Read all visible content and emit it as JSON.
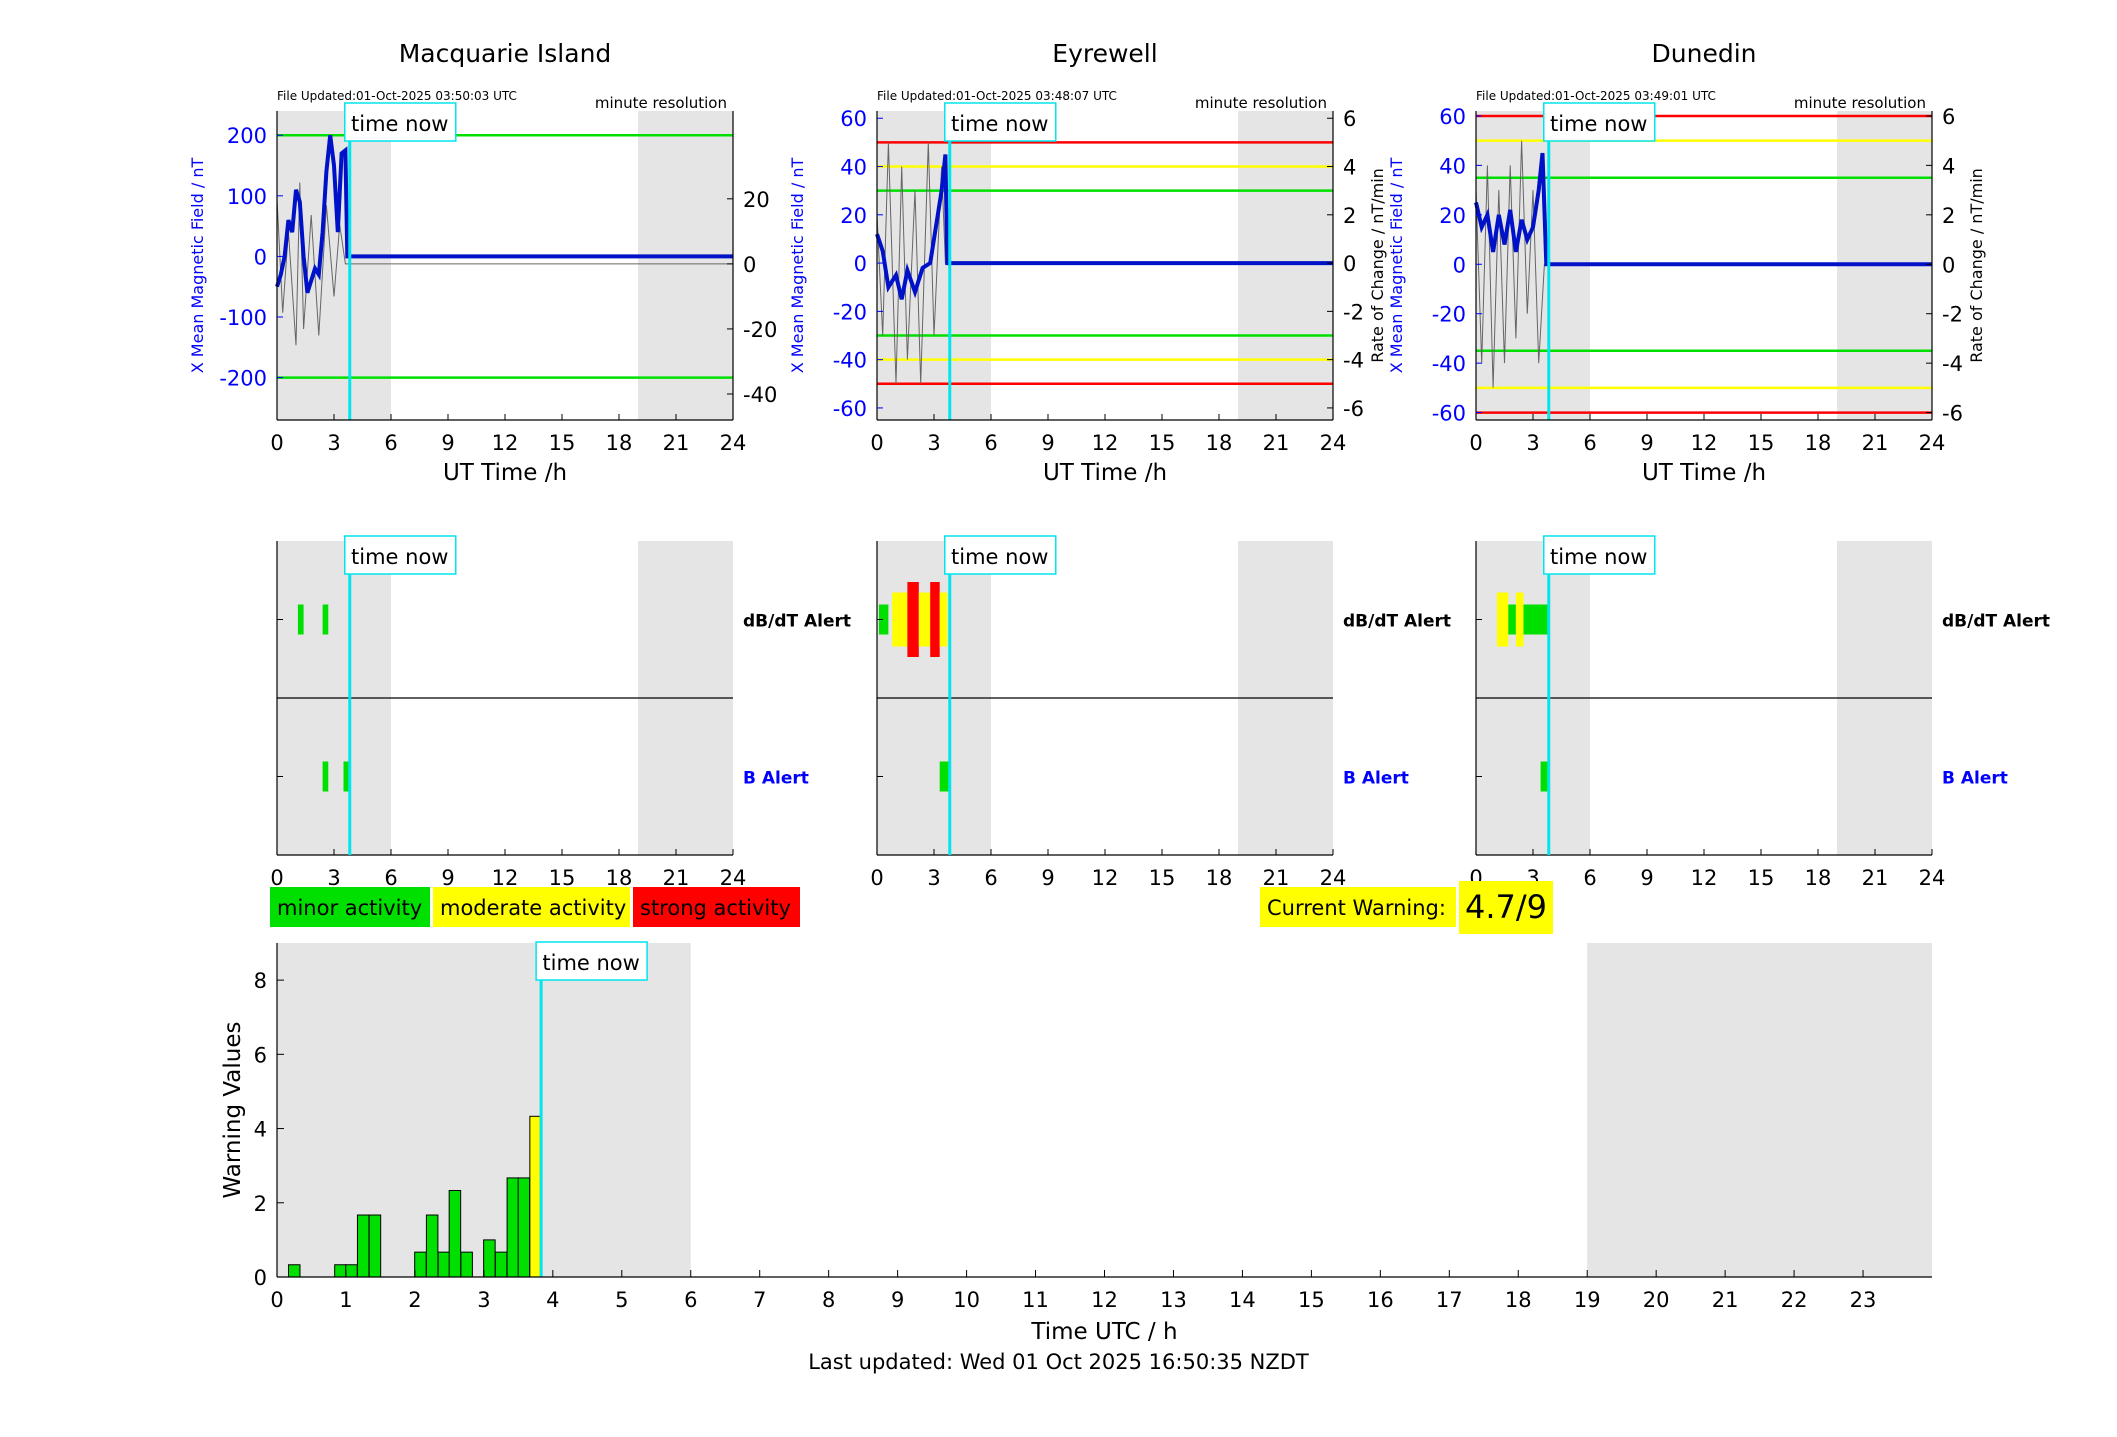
{
  "stations": [
    {
      "name": "Macquarie Island",
      "file_updated": "File Updated:01-Oct-2025 03:50:03 UTC",
      "resolution": "minute resolution",
      "left_ylabel": "X Mean Magnetic Field / nT",
      "right_ylabel": "",
      "left_ticks": [
        200,
        100,
        0,
        -100,
        -200
      ],
      "left_ylim": [
        -270,
        240
      ],
      "right_ticks": [
        20,
        0,
        -20,
        -40
      ],
      "right_ylim": [
        -48,
        47
      ],
      "thresholds": [
        {
          "value": 200,
          "color": "#00e000"
        },
        {
          "value": -200,
          "color": "#00e000"
        }
      ],
      "field_trace": [
        [
          0,
          -50
        ],
        [
          0.2,
          -30
        ],
        [
          0.4,
          0
        ],
        [
          0.6,
          60
        ],
        [
          0.8,
          40
        ],
        [
          1,
          110
        ],
        [
          1.2,
          90
        ],
        [
          1.4,
          0
        ],
        [
          1.6,
          -60
        ],
        [
          1.8,
          -40
        ],
        [
          2,
          -20
        ],
        [
          2.2,
          -30
        ],
        [
          2.4,
          40
        ],
        [
          2.6,
          140
        ],
        [
          2.8,
          200
        ],
        [
          3,
          150
        ],
        [
          3.2,
          40
        ],
        [
          3.4,
          170
        ],
        [
          3.6,
          175
        ],
        [
          3.7,
          0
        ],
        [
          24,
          0
        ]
      ],
      "rate_trace": [
        [
          0,
          20
        ],
        [
          0.3,
          -15
        ],
        [
          0.6,
          10
        ],
        [
          1,
          -25
        ],
        [
          1.2,
          25
        ],
        [
          1.4,
          -20
        ],
        [
          1.8,
          15
        ],
        [
          2.2,
          -22
        ],
        [
          2.6,
          18
        ],
        [
          3,
          -10
        ],
        [
          3.3,
          12
        ],
        [
          3.6,
          0
        ],
        [
          24,
          0
        ]
      ],
      "dbdt_alerts": [
        {
          "start": 1.1,
          "end": 1.4,
          "level": "minor"
        },
        {
          "start": 2.4,
          "end": 2.7,
          "level": "minor"
        }
      ],
      "b_alerts": [
        {
          "start": 2.4,
          "end": 2.7,
          "level": "minor"
        },
        {
          "start": 3.5,
          "end": 3.85,
          "level": "minor"
        }
      ]
    },
    {
      "name": "Eyrewell",
      "file_updated": "File Updated:01-Oct-2025 03:48:07 UTC",
      "resolution": "minute resolution",
      "left_ylabel": "X Mean Magnetic Field / nT",
      "right_ylabel": "Rate of Change / nT/min",
      "left_ticks": [
        60,
        40,
        20,
        0,
        -20,
        -40,
        -60
      ],
      "left_ylim": [
        -65,
        63
      ],
      "right_ticks": [
        6,
        4,
        2,
        0,
        -2,
        -4,
        -6
      ],
      "right_ylim": [
        -6.5,
        6.3
      ],
      "thresholds": [
        {
          "value": 50,
          "color": "#ff0000"
        },
        {
          "value": 40,
          "color": "#ffff00"
        },
        {
          "value": 30,
          "color": "#00e000"
        },
        {
          "value": -30,
          "color": "#00e000"
        },
        {
          "value": -40,
          "color": "#ffff00"
        },
        {
          "value": -50,
          "color": "#ff0000"
        }
      ],
      "field_trace": [
        [
          0,
          12
        ],
        [
          0.3,
          5
        ],
        [
          0.6,
          -10
        ],
        [
          1,
          -5
        ],
        [
          1.3,
          -15
        ],
        [
          1.6,
          -3
        ],
        [
          2,
          -12
        ],
        [
          2.4,
          -2
        ],
        [
          2.8,
          0
        ],
        [
          3.1,
          15
        ],
        [
          3.4,
          30
        ],
        [
          3.6,
          45
        ],
        [
          3.7,
          0
        ],
        [
          24,
          0
        ]
      ],
      "rate_trace": [
        [
          0,
          2
        ],
        [
          0.3,
          -3
        ],
        [
          0.6,
          5
        ],
        [
          1,
          -5
        ],
        [
          1.3,
          4
        ],
        [
          1.6,
          -4
        ],
        [
          2,
          3
        ],
        [
          2.3,
          -5
        ],
        [
          2.7,
          5
        ],
        [
          3,
          -3
        ],
        [
          3.4,
          4
        ],
        [
          3.6,
          0
        ],
        [
          24,
          0
        ]
      ],
      "dbdt_alerts": [
        {
          "start": 0.1,
          "end": 0.6,
          "level": "minor"
        },
        {
          "start": 0.8,
          "end": 1.6,
          "level": "moderate"
        },
        {
          "start": 1.6,
          "end": 2.2,
          "level": "strong"
        },
        {
          "start": 2.2,
          "end": 2.8,
          "level": "moderate"
        },
        {
          "start": 2.8,
          "end": 3.3,
          "level": "strong"
        },
        {
          "start": 3.3,
          "end": 3.7,
          "level": "moderate"
        }
      ],
      "b_alerts": [
        {
          "start": 3.3,
          "end": 3.85,
          "level": "minor"
        }
      ]
    },
    {
      "name": "Dunedin",
      "file_updated": "File Updated:01-Oct-2025 03:49:01 UTC",
      "resolution": "minute resolution",
      "left_ylabel": "X Mean Magnetic Field / nT",
      "right_ylabel": "Rate of Change / nT/min",
      "left_ticks": [
        60,
        40,
        20,
        0,
        -20,
        -40,
        -60
      ],
      "left_ylim": [
        -63,
        62
      ],
      "right_ticks": [
        6,
        4,
        2,
        0,
        -2,
        -4,
        -6
      ],
      "right_ylim": [
        -6.3,
        6.2
      ],
      "thresholds": [
        {
          "value": 60,
          "color": "#ff0000"
        },
        {
          "value": 50,
          "color": "#ffff00"
        },
        {
          "value": 35,
          "color": "#00e000"
        },
        {
          "value": -35,
          "color": "#00e000"
        },
        {
          "value": -50,
          "color": "#ffff00"
        },
        {
          "value": -60,
          "color": "#ff0000"
        }
      ],
      "field_trace": [
        [
          0,
          25
        ],
        [
          0.3,
          15
        ],
        [
          0.6,
          20
        ],
        [
          0.9,
          5
        ],
        [
          1.2,
          20
        ],
        [
          1.5,
          8
        ],
        [
          1.8,
          22
        ],
        [
          2.1,
          5
        ],
        [
          2.4,
          18
        ],
        [
          2.7,
          10
        ],
        [
          3,
          15
        ],
        [
          3.3,
          30
        ],
        [
          3.5,
          45
        ],
        [
          3.7,
          0
        ],
        [
          24,
          0
        ]
      ],
      "rate_trace": [
        [
          0,
          3
        ],
        [
          0.3,
          -4
        ],
        [
          0.6,
          4
        ],
        [
          0.9,
          -5
        ],
        [
          1.2,
          3
        ],
        [
          1.5,
          -4
        ],
        [
          1.8,
          4
        ],
        [
          2.1,
          -3
        ],
        [
          2.4,
          5
        ],
        [
          2.7,
          -2
        ],
        [
          3,
          3
        ],
        [
          3.3,
          -4
        ],
        [
          3.6,
          0
        ],
        [
          24,
          0
        ]
      ],
      "dbdt_alerts": [
        {
          "start": 1.1,
          "end": 1.7,
          "level": "moderate"
        },
        {
          "start": 1.7,
          "end": 2.1,
          "level": "minor"
        },
        {
          "start": 2.1,
          "end": 2.5,
          "level": "moderate"
        },
        {
          "start": 2.5,
          "end": 3.8,
          "level": "minor"
        }
      ],
      "b_alerts": [
        {
          "start": 3.4,
          "end": 3.85,
          "level": "minor"
        }
      ]
    }
  ],
  "time_axis": {
    "ticks": [
      0,
      3,
      6,
      9,
      12,
      15,
      18,
      21,
      24
    ],
    "xlim": [
      0,
      24
    ],
    "label": "UT Time /h"
  },
  "shading": [
    [
      0,
      6
    ],
    [
      19,
      24
    ]
  ],
  "now_hour": 3.83,
  "time_now_label": "time now",
  "alert_labels": {
    "dbdt": "dB/dT Alert",
    "b": "B Alert"
  },
  "legend": [
    {
      "label": "minor activity",
      "color": "#00e000"
    },
    {
      "label": "moderate activity",
      "color": "#ffff00"
    },
    {
      "label": "strong activity",
      "color": "#ff0000"
    }
  ],
  "current_warning": {
    "label": "Current Warning:",
    "value": "4.7/9",
    "color": "#ffff00"
  },
  "chart_data": {
    "type": "bar",
    "xlabel": "Time UTC / h",
    "ylabel": "Warning Values",
    "xlim": [
      0,
      24
    ],
    "ylim": [
      0,
      9
    ],
    "xticks": [
      0,
      1,
      2,
      3,
      4,
      5,
      6,
      7,
      8,
      9,
      10,
      11,
      12,
      13,
      14,
      15,
      16,
      17,
      18,
      19,
      20,
      21,
      22,
      23
    ],
    "yticks": [
      0,
      2,
      4,
      6,
      8
    ],
    "bar_width": 0.1667,
    "bars": [
      {
        "x": 0.25,
        "value": 0.33,
        "level": "minor"
      },
      {
        "x": 0.92,
        "value": 0.33,
        "level": "minor"
      },
      {
        "x": 1.08,
        "value": 0.33,
        "level": "minor"
      },
      {
        "x": 1.25,
        "value": 1.67,
        "level": "minor"
      },
      {
        "x": 1.42,
        "value": 1.67,
        "level": "minor"
      },
      {
        "x": 2.08,
        "value": 0.67,
        "level": "minor"
      },
      {
        "x": 2.25,
        "value": 1.67,
        "level": "minor"
      },
      {
        "x": 2.42,
        "value": 0.67,
        "level": "minor"
      },
      {
        "x": 2.58,
        "value": 2.33,
        "level": "minor"
      },
      {
        "x": 2.75,
        "value": 0.67,
        "level": "minor"
      },
      {
        "x": 3.08,
        "value": 1.0,
        "level": "minor"
      },
      {
        "x": 3.25,
        "value": 0.67,
        "level": "minor"
      },
      {
        "x": 3.42,
        "value": 2.67,
        "level": "minor"
      },
      {
        "x": 3.58,
        "value": 2.67,
        "level": "minor"
      },
      {
        "x": 3.75,
        "value": 4.33,
        "level": "moderate"
      }
    ]
  },
  "footer": "Last updated: Wed 01 Oct 2025 16:50:35 NZDT"
}
